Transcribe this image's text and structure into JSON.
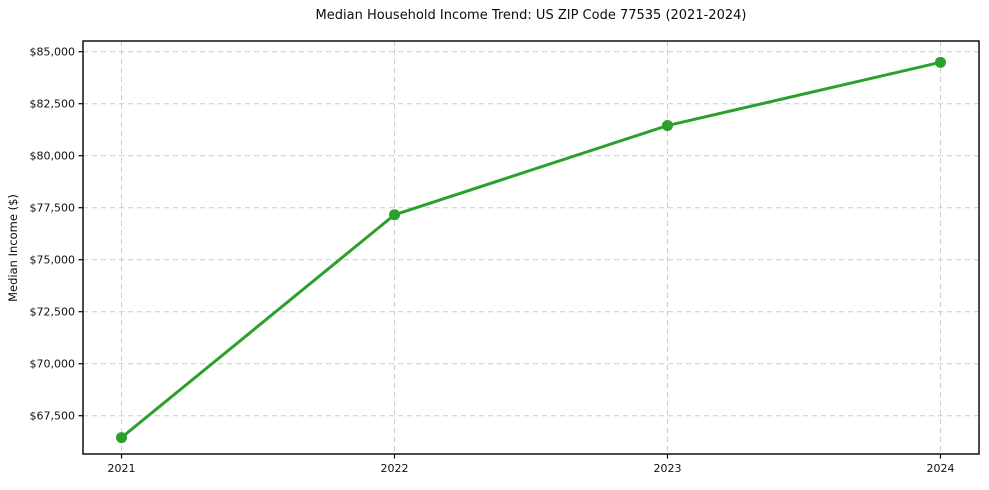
{
  "chart_data": {
    "type": "line",
    "title": "Median Household Income Trend: US ZIP Code 77535 (2021-2024)",
    "xlabel": "",
    "ylabel": "Median Income ($)",
    "categories": [
      "2021",
      "2022",
      "2023",
      "2024"
    ],
    "values": [
      66450,
      77160,
      81450,
      84490
    ],
    "ylim": [
      65660,
      85515
    ],
    "yticks": {
      "values": [
        67500,
        70000,
        72500,
        75000,
        77500,
        80000,
        82500,
        85000
      ],
      "labels": [
        "$67,500",
        "$70,000",
        "$72,500",
        "$75,000",
        "$77,500",
        "$80,000",
        "$82,500",
        "$85,000"
      ]
    },
    "grid": true,
    "grid_style": "dashed",
    "legend": "none",
    "line_color": "#2ca02c",
    "marker": "circle",
    "grid_color": "#cccccc",
    "spine_color": "#000000",
    "text_color": "#111111",
    "background": "#ffffff"
  }
}
